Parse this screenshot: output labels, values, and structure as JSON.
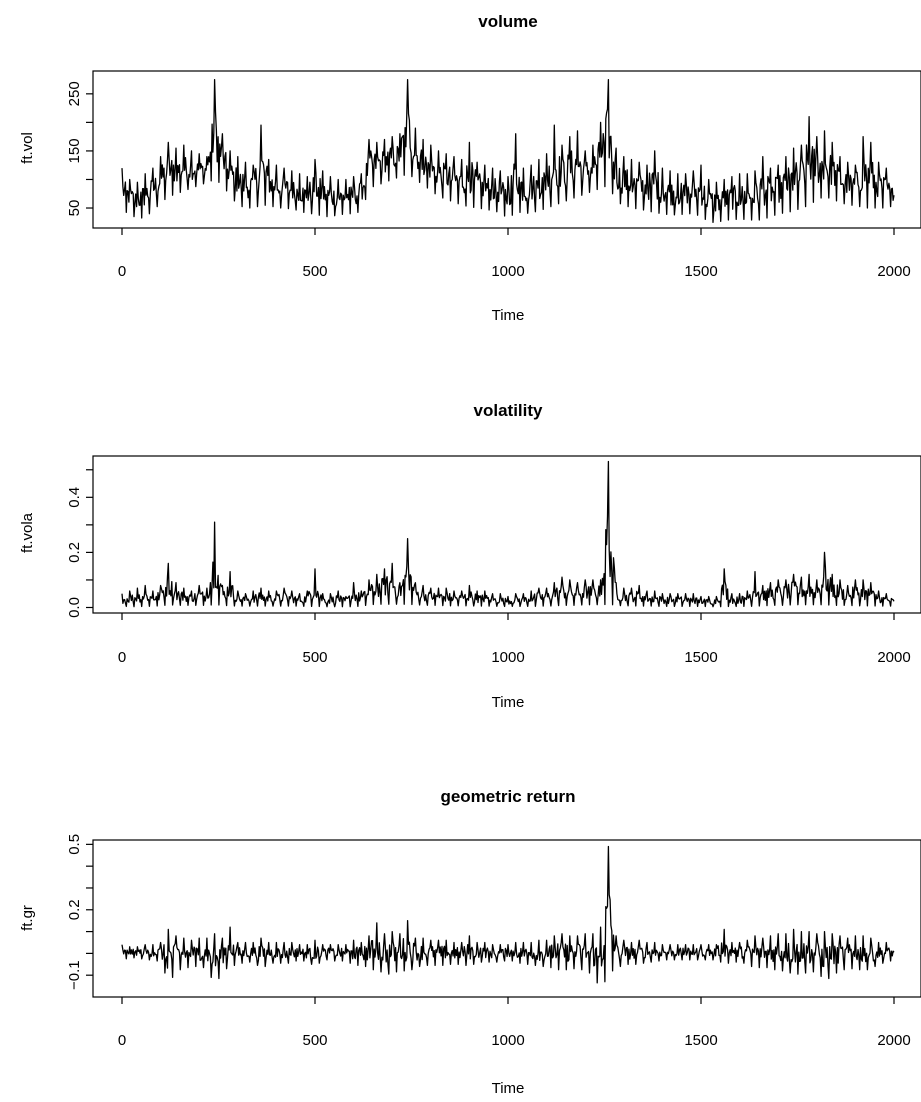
{
  "chart_data": [
    {
      "type": "line",
      "title": "volume",
      "xlabel": "Time",
      "ylabel": "ft.vol",
      "xlim": [
        0,
        2000
      ],
      "ylim": [
        15,
        290
      ],
      "x_ticks": [
        0,
        500,
        1000,
        1500,
        2000
      ],
      "y_ticks": [
        50,
        150,
        250
      ],
      "y_minor_ticks": [
        100,
        200
      ],
      "series": [
        {
          "x": [
            0,
            20,
            40,
            60,
            80,
            100,
            120,
            140,
            160,
            180,
            200,
            220,
            240,
            260,
            280,
            300,
            320,
            340,
            360,
            380,
            400,
            420,
            440,
            460,
            480,
            500,
            520,
            540,
            560,
            580,
            600,
            620,
            640,
            660,
            680,
            700,
            720,
            740,
            760,
            780,
            800,
            820,
            840,
            860,
            880,
            900,
            920,
            940,
            960,
            980,
            1000,
            1020,
            1040,
            1060,
            1080,
            1100,
            1120,
            1140,
            1160,
            1180,
            1200,
            1220,
            1240,
            1260,
            1280,
            1300,
            1320,
            1340,
            1360,
            1380,
            1400,
            1420,
            1440,
            1460,
            1480,
            1500,
            1520,
            1540,
            1560,
            1580,
            1600,
            1620,
            1640,
            1660,
            1680,
            1700,
            1720,
            1740,
            1760,
            1780,
            1800,
            1820,
            1840,
            1860,
            1880,
            1900,
            1920,
            1940,
            1960,
            1980,
            2000
          ],
          "low": [
            45,
            40,
            30,
            35,
            45,
            60,
            70,
            75,
            80,
            85,
            90,
            95,
            100,
            90,
            70,
            55,
            50,
            50,
            55,
            55,
            50,
            50,
            48,
            45,
            40,
            40,
            35,
            35,
            38,
            40,
            40,
            45,
            85,
            90,
            95,
            100,
            105,
            110,
            100,
            90,
            80,
            70,
            65,
            60,
            55,
            52,
            50,
            48,
            45,
            42,
            30,
            45,
            40,
            42,
            45,
            50,
            55,
            60,
            65,
            70,
            75,
            80,
            85,
            90,
            60,
            55,
            50,
            48,
            45,
            42,
            40,
            38,
            38,
            40,
            40,
            35,
            25,
            25,
            28,
            30,
            30,
            30,
            28,
            30,
            35,
            40,
            42,
            45,
            50,
            55,
            65,
            70,
            65,
            60,
            55,
            55,
            50,
            50,
            50,
            50,
            55
          ],
          "high": [
            120,
            100,
            95,
            110,
            120,
            140,
            165,
            155,
            160,
            150,
            145,
            140,
            275,
            180,
            150,
            140,
            130,
            125,
            195,
            135,
            125,
            120,
            115,
            110,
            105,
            135,
            115,
            105,
            100,
            100,
            105,
            110,
            170,
            165,
            170,
            175,
            180,
            275,
            190,
            170,
            160,
            150,
            145,
            140,
            135,
            165,
            130,
            125,
            120,
            115,
            105,
            180,
            120,
            125,
            135,
            145,
            195,
            160,
            175,
            185,
            150,
            160,
            200,
            275,
            155,
            140,
            135,
            130,
            125,
            150,
            120,
            115,
            110,
            110,
            115,
            125,
            100,
            95,
            100,
            105,
            110,
            110,
            115,
            140,
            120,
            125,
            140,
            155,
            160,
            210,
            175,
            185,
            165,
            140,
            130,
            125,
            175,
            165,
            130,
            120,
            90
          ]
        }
      ]
    },
    {
      "type": "line",
      "title": "volatility",
      "xlabel": "Time",
      "ylabel": "ft.vola",
      "xlim": [
        0,
        2000
      ],
      "ylim": [
        -0.02,
        0.55
      ],
      "x_ticks": [
        0,
        500,
        1000,
        1500,
        2000
      ],
      "y_ticks": [
        0.0,
        0.2,
        0.4
      ],
      "y_tick_labels": [
        "0.0",
        "0.2",
        "0.4"
      ],
      "y_minor_ticks": [
        0.1,
        0.3,
        0.5
      ],
      "series": [
        {
          "x": [
            0,
            20,
            40,
            60,
            80,
            100,
            120,
            140,
            160,
            180,
            200,
            220,
            240,
            260,
            280,
            300,
            320,
            340,
            360,
            380,
            400,
            420,
            440,
            460,
            480,
            500,
            520,
            540,
            560,
            580,
            600,
            620,
            640,
            660,
            680,
            700,
            720,
            740,
            760,
            780,
            800,
            820,
            840,
            860,
            880,
            900,
            920,
            940,
            960,
            980,
            1000,
            1020,
            1040,
            1060,
            1080,
            1100,
            1120,
            1140,
            1160,
            1180,
            1200,
            1220,
            1240,
            1260,
            1280,
            1300,
            1320,
            1340,
            1360,
            1380,
            1400,
            1420,
            1440,
            1460,
            1480,
            1500,
            1520,
            1540,
            1560,
            1580,
            1600,
            1620,
            1640,
            1660,
            1680,
            1700,
            1720,
            1740,
            1760,
            1780,
            1800,
            1820,
            1840,
            1860,
            1880,
            1900,
            1920,
            1940,
            1960,
            1980,
            2000
          ],
          "low": [
            0.005,
            0.003,
            0.003,
            0.004,
            0.005,
            0.006,
            0.01,
            0.008,
            0.008,
            0.008,
            0.008,
            0.008,
            0.01,
            0.008,
            0.006,
            0.005,
            0.005,
            0.005,
            0.005,
            0.005,
            0.005,
            0.005,
            0.005,
            0.005,
            0.004,
            0.004,
            0.003,
            0.003,
            0.003,
            0.003,
            0.003,
            0.005,
            0.01,
            0.012,
            0.012,
            0.012,
            0.012,
            0.012,
            0.01,
            0.008,
            0.008,
            0.008,
            0.006,
            0.006,
            0.006,
            0.006,
            0.005,
            0.005,
            0.005,
            0.004,
            0.004,
            0.004,
            0.004,
            0.004,
            0.005,
            0.005,
            0.006,
            0.008,
            0.008,
            0.008,
            0.01,
            0.01,
            0.01,
            0.012,
            0.008,
            0.006,
            0.006,
            0.005,
            0.005,
            0.005,
            0.004,
            0.004,
            0.004,
            0.004,
            0.004,
            0.004,
            0.003,
            0.003,
            0.003,
            0.004,
            0.004,
            0.004,
            0.005,
            0.006,
            0.008,
            0.008,
            0.008,
            0.01,
            0.01,
            0.01,
            0.01,
            0.01,
            0.008,
            0.008,
            0.008,
            0.006,
            0.006,
            0.006,
            0.005,
            0.005,
            0.005
          ],
          "high": [
            0.05,
            0.06,
            0.07,
            0.08,
            0.06,
            0.08,
            0.16,
            0.09,
            0.07,
            0.06,
            0.08,
            0.07,
            0.31,
            0.08,
            0.13,
            0.06,
            0.05,
            0.06,
            0.07,
            0.06,
            0.06,
            0.07,
            0.06,
            0.05,
            0.06,
            0.14,
            0.05,
            0.05,
            0.06,
            0.04,
            0.09,
            0.06,
            0.1,
            0.12,
            0.14,
            0.16,
            0.09,
            0.25,
            0.09,
            0.08,
            0.07,
            0.07,
            0.07,
            0.06,
            0.06,
            0.08,
            0.06,
            0.06,
            0.05,
            0.05,
            0.04,
            0.05,
            0.05,
            0.06,
            0.07,
            0.07,
            0.09,
            0.11,
            0.1,
            0.09,
            0.1,
            0.1,
            0.1,
            0.53,
            0.09,
            0.07,
            0.07,
            0.08,
            0.06,
            0.06,
            0.05,
            0.05,
            0.05,
            0.05,
            0.05,
            0.04,
            0.04,
            0.04,
            0.14,
            0.05,
            0.05,
            0.06,
            0.13,
            0.08,
            0.09,
            0.1,
            0.1,
            0.12,
            0.11,
            0.12,
            0.1,
            0.2,
            0.12,
            0.1,
            0.08,
            0.1,
            0.1,
            0.09,
            0.06,
            0.05,
            0.04
          ]
        }
      ]
    },
    {
      "type": "line",
      "title": "geometric return",
      "xlabel": "Time",
      "ylabel": "ft.gr",
      "xlim": [
        0,
        2000
      ],
      "ylim": [
        -0.2,
        0.52
      ],
      "x_ticks": [
        0,
        500,
        1000,
        1500,
        2000
      ],
      "y_ticks": [
        -0.1,
        0.2,
        0.5
      ],
      "y_tick_labels": [
        "−0.1",
        "0.2",
        "0.5"
      ],
      "y_minor_ticks": [
        0.0,
        0.1,
        0.3,
        0.4
      ],
      "series": [
        {
          "x": [
            0,
            20,
            40,
            60,
            80,
            100,
            120,
            140,
            160,
            180,
            200,
            220,
            240,
            260,
            280,
            300,
            320,
            340,
            360,
            380,
            400,
            420,
            440,
            460,
            480,
            500,
            520,
            540,
            560,
            580,
            600,
            620,
            640,
            660,
            680,
            700,
            720,
            740,
            760,
            780,
            800,
            820,
            840,
            860,
            880,
            900,
            920,
            940,
            960,
            980,
            1000,
            1020,
            1040,
            1060,
            1080,
            1100,
            1120,
            1140,
            1160,
            1180,
            1200,
            1220,
            1240,
            1260,
            1280,
            1300,
            1320,
            1340,
            1360,
            1380,
            1400,
            1420,
            1440,
            1460,
            1480,
            1500,
            1520,
            1540,
            1560,
            1580,
            1600,
            1620,
            1640,
            1660,
            1680,
            1700,
            1720,
            1740,
            1760,
            1780,
            1800,
            1820,
            1840,
            1860,
            1880,
            1900,
            1920,
            1940,
            1960,
            1980,
            2000
          ],
          "low": [
            -0.03,
            -0.02,
            -0.02,
            -0.03,
            -0.03,
            -0.04,
            -0.14,
            -0.08,
            -0.07,
            -0.06,
            -0.06,
            -0.07,
            -0.15,
            -0.08,
            -0.06,
            -0.05,
            -0.04,
            -0.04,
            -0.07,
            -0.05,
            -0.04,
            -0.05,
            -0.04,
            -0.03,
            -0.04,
            -0.06,
            -0.03,
            -0.03,
            -0.04,
            -0.03,
            -0.06,
            -0.05,
            -0.07,
            -0.08,
            -0.09,
            -0.1,
            -0.07,
            -0.09,
            -0.06,
            -0.06,
            -0.05,
            -0.06,
            -0.05,
            -0.05,
            -0.05,
            -0.06,
            -0.04,
            -0.04,
            -0.04,
            -0.04,
            -0.03,
            -0.04,
            -0.05,
            -0.05,
            -0.06,
            -0.06,
            -0.07,
            -0.08,
            -0.07,
            -0.07,
            -0.08,
            -0.1,
            -0.17,
            -0.09,
            -0.07,
            -0.05,
            -0.05,
            -0.05,
            -0.04,
            -0.04,
            -0.03,
            -0.03,
            -0.03,
            -0.03,
            -0.03,
            -0.03,
            -0.03,
            -0.03,
            -0.05,
            -0.04,
            -0.04,
            -0.05,
            -0.07,
            -0.06,
            -0.07,
            -0.08,
            -0.08,
            -0.1,
            -0.09,
            -0.09,
            -0.08,
            -0.13,
            -0.1,
            -0.08,
            -0.07,
            -0.07,
            -0.08,
            -0.07,
            -0.05,
            -0.04,
            -0.03
          ],
          "high": [
            0.04,
            0.03,
            0.03,
            0.04,
            0.04,
            0.05,
            0.11,
            0.08,
            0.07,
            0.06,
            0.07,
            0.07,
            0.09,
            0.07,
            0.12,
            0.05,
            0.05,
            0.05,
            0.07,
            0.05,
            0.05,
            0.05,
            0.05,
            0.04,
            0.04,
            0.06,
            0.04,
            0.04,
            0.04,
            0.04,
            0.06,
            0.05,
            0.08,
            0.14,
            0.09,
            0.1,
            0.09,
            0.15,
            0.07,
            0.07,
            0.06,
            0.06,
            0.06,
            0.05,
            0.05,
            0.08,
            0.05,
            0.05,
            0.04,
            0.04,
            0.04,
            0.05,
            0.05,
            0.05,
            0.06,
            0.06,
            0.08,
            0.09,
            0.08,
            0.08,
            0.09,
            0.09,
            0.12,
            0.49,
            0.08,
            0.06,
            0.05,
            0.06,
            0.05,
            0.05,
            0.04,
            0.04,
            0.04,
            0.04,
            0.04,
            0.04,
            0.04,
            0.04,
            0.11,
            0.05,
            0.05,
            0.06,
            0.08,
            0.07,
            0.08,
            0.09,
            0.09,
            0.11,
            0.1,
            0.1,
            0.09,
            0.1,
            0.09,
            0.08,
            0.07,
            0.08,
            0.08,
            0.07,
            0.05,
            0.05,
            0.04
          ]
        }
      ]
    }
  ]
}
